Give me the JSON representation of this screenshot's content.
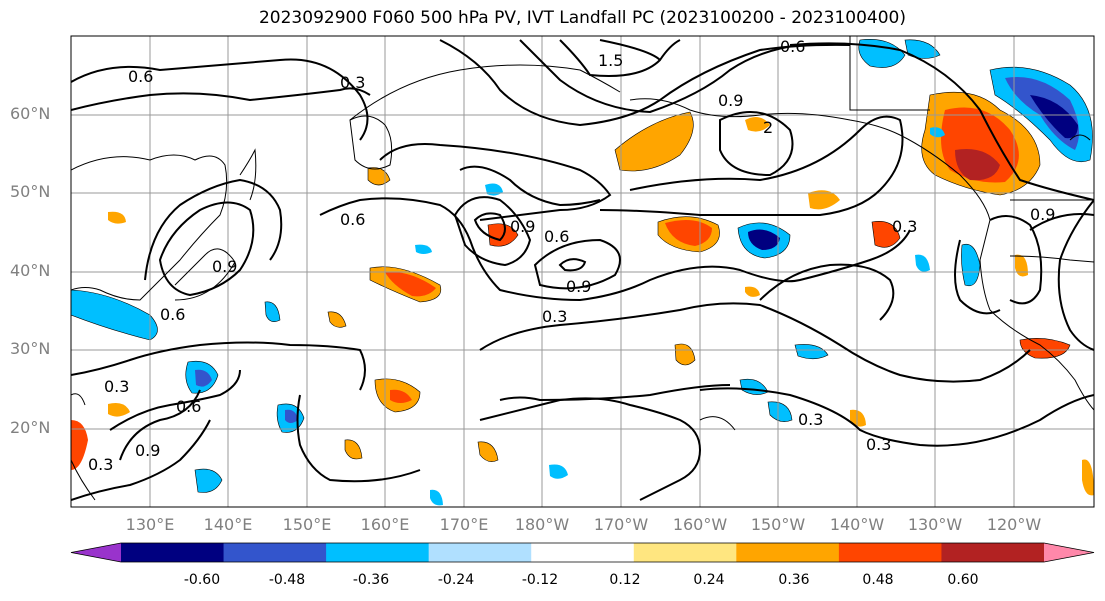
{
  "title": "2023092900 F060 500 hPa PV, IVT Landfall PC (2023100200 - 2023100400)",
  "lat_labels": [
    "60°N",
    "50°N",
    "40°N",
    "30°N",
    "20°N"
  ],
  "lon_labels": [
    "130°E",
    "140°E",
    "150°E",
    "160°E",
    "170°E",
    "180°W",
    "170°W",
    "160°W",
    "150°W",
    "140°W",
    "130°W",
    "120°W"
  ],
  "contour_labels": [
    "0.6",
    "0.3",
    "1.5",
    "0.9",
    "0.6",
    "2",
    "0.6",
    "0.9",
    "0.6",
    "0.9",
    "0.3",
    "0.6",
    "0.9",
    "0.3",
    "0.3",
    "0.9",
    "0.3",
    "0.6",
    "0.9",
    "0.3",
    "0.3"
  ],
  "colorbar": {
    "tick_labels": [
      "-0.60",
      "-0.48",
      "-0.36",
      "-0.24",
      "-0.12",
      "0.12",
      "0.24",
      "0.36",
      "0.48",
      "0.60"
    ],
    "colors": [
      "#9933cc",
      "#000080",
      "#3355cc",
      "#00bfff",
      "#b0e0ff",
      "#ffffff",
      "#ffe680",
      "#ffa500",
      "#ff4500",
      "#b22222",
      "#ff88aa"
    ]
  }
}
